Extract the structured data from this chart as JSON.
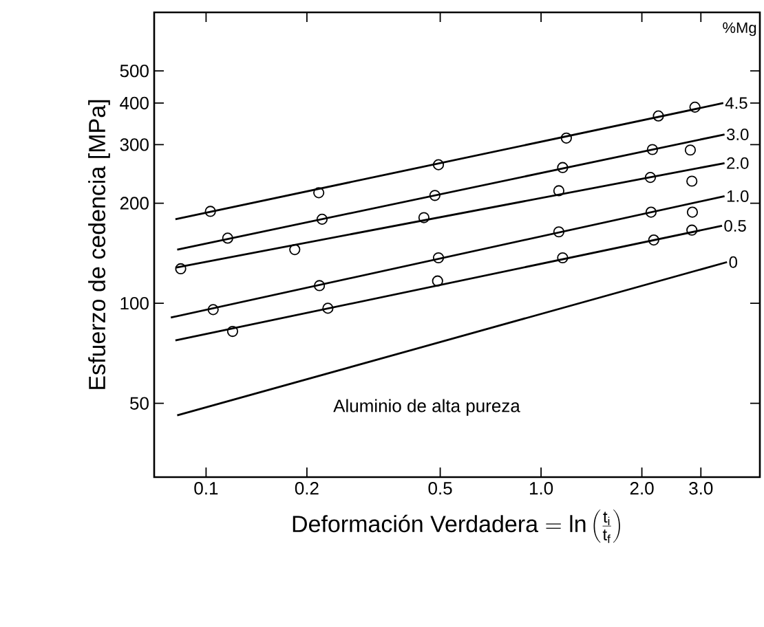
{
  "chart_data": {
    "type": "line",
    "ylabel": "Esfuerzo de cedencia [MPa]",
    "xlabel": "\\mbox{Deformación Verdadera} = \\ln\\left(\\frac{\\mathrm{t_i}}{\\mathrm{t_f}}\\right)",
    "legend_title": "%Mg",
    "log": "xy",
    "xlim": [
      0.07,
      4.5
    ],
    "ylim": [
      30,
      750
    ],
    "xticks": [
      0.1,
      0.2,
      0.5,
      {
        "value": 1,
        "label": "1.0"
      },
      {
        "value": 2,
        "label": "2.0"
      },
      {
        "value": 3,
        "label": "3.0"
      }
    ],
    "yticks": [
      50,
      100,
      200,
      300,
      400,
      500
    ],
    "grid": false,
    "legend": "right",
    "annotations": [
      "Aluminio de alta pureza"
    ],
    "series": [
      {
        "name": "4.5",
        "color": "#000000",
        "x": [
          0.081,
          3.5
        ],
        "values": [
          179,
          400
        ]
      },
      {
        "name": "3.0",
        "color": "#000000",
        "x": [
          0.082,
          3.53
        ],
        "values": [
          145,
          322
        ]
      },
      {
        "name": "2.0",
        "color": "#000000",
        "x": [
          0.081,
          3.53
        ],
        "values": [
          128,
          264
        ]
      },
      {
        "name": "1.0",
        "color": "#000000",
        "x": [
          0.0785,
          3.53
        ],
        "values": [
          90.6,
          210
        ]
      },
      {
        "name": "0.5",
        "color": "#000000",
        "x": [
          0.081,
          3.47
        ],
        "values": [
          77.3,
          171
        ]
      },
      {
        "name": "0",
        "color": "#000000",
        "x": [
          0.082,
          3.59
        ],
        "values": [
          46,
          133
        ]
      },
      {
        "type": "scatter",
        "marker": "circle",
        "color": "#000000",
        "x": [
          0.103,
          0.217,
          0.494,
          1.19,
          2.24,
          2.88
        ],
        "values": [
          189,
          215,
          261,
          314,
          366,
          389
        ]
      },
      {
        "type": "scatter",
        "marker": "circle",
        "color": "#000000",
        "x": [
          0.116,
          0.222,
          0.482,
          1.16,
          2.15,
          2.79
        ],
        "values": [
          157,
          179,
          211,
          256,
          290,
          289
        ]
      },
      {
        "type": "scatter",
        "marker": "circle",
        "color": "#000000",
        "x": [
          0.084,
          0.184,
          0.447,
          1.13,
          2.12,
          2.82
        ],
        "values": [
          127,
          145,
          181,
          218,
          239,
          233
        ]
      },
      {
        "type": "scatter",
        "marker": "circle",
        "color": "#000000",
        "x": [
          0.105,
          0.218,
          0.494,
          1.13,
          2.13,
          2.83
        ],
        "values": [
          95.7,
          113,
          137,
          164,
          188,
          188
        ]
      },
      {
        "type": "scatter",
        "marker": "circle",
        "color": "#000000",
        "x": [
          0.12,
          0.231,
          0.491,
          1.16,
          2.17,
          2.82
        ],
        "values": [
          82.3,
          96.6,
          116.7,
          137,
          155,
          166
        ]
      }
    ]
  }
}
